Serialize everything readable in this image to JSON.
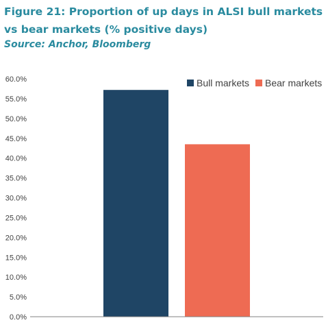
{
  "header": {
    "title": "Figure 21: Proportion of up days in ALSI bull markets vs bear markets (% positive days)",
    "source": "Source: Anchor, Bloomberg"
  },
  "chart_data": {
    "type": "bar",
    "categories": [
      "Bull markets",
      "Bear markets"
    ],
    "series": [
      {
        "name": "Bull markets",
        "values": [
          57.2,
          null
        ],
        "color": "#1f4565"
      },
      {
        "name": "Bear markets",
        "values": [
          null,
          43.5
        ],
        "color": "#ee6b53"
      }
    ],
    "yticks": [
      "0.0%",
      "5.0%",
      "10.0%",
      "15.0%",
      "20.0%",
      "25.0%",
      "30.0%",
      "35.0%",
      "40.0%",
      "45.0%",
      "50.0%",
      "55.0%",
      "60.0%"
    ],
    "ylim": [
      0,
      60
    ],
    "grid": false,
    "legend_position": "top-right",
    "xlabel": "",
    "ylabel": ""
  }
}
